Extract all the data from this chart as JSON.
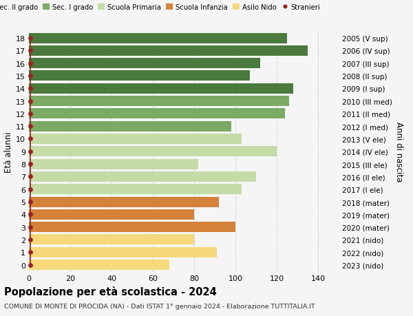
{
  "ages": [
    18,
    17,
    16,
    15,
    14,
    13,
    12,
    11,
    10,
    9,
    8,
    7,
    6,
    5,
    4,
    3,
    2,
    1,
    0
  ],
  "right_labels": [
    "2005 (V sup)",
    "2006 (IV sup)",
    "2007 (III sup)",
    "2008 (II sup)",
    "2009 (I sup)",
    "2010 (III med)",
    "2011 (II med)",
    "2012 (I med)",
    "2013 (V ele)",
    "2014 (IV ele)",
    "2015 (III ele)",
    "2016 (II ele)",
    "2017 (I ele)",
    "2018 (mater)",
    "2019 (mater)",
    "2020 (mater)",
    "2021 (nido)",
    "2022 (nido)",
    "2023 (nido)"
  ],
  "bar_values": [
    125,
    135,
    112,
    107,
    128,
    126,
    124,
    98,
    103,
    120,
    82,
    110,
    103,
    92,
    80,
    100,
    80,
    91,
    68
  ],
  "bar_colors": [
    "#4a7a3d",
    "#4a7a3d",
    "#4a7a3d",
    "#4a7a3d",
    "#4a7a3d",
    "#7aaa64",
    "#7aaa64",
    "#7aaa64",
    "#c5dba8",
    "#c5dba8",
    "#c5dba8",
    "#c5dba8",
    "#c5dba8",
    "#d4823a",
    "#d4823a",
    "#d4823a",
    "#f5d87a",
    "#f5d87a",
    "#f5d87a"
  ],
  "stranieri_color": "#9b2222",
  "legend_labels": [
    "Sec. II grado",
    "Sec. I grado",
    "Scuola Primaria",
    "Scuola Infanzia",
    "Asilo Nido",
    "Stranieri"
  ],
  "legend_colors": [
    "#4a7a3d",
    "#7aaa64",
    "#c5dba8",
    "#d4823a",
    "#f5d87a",
    "#9b2222"
  ],
  "ylabel_left": "Età alunni",
  "ylabel_right": "Anni di nascita",
  "title": "Popolazione per età scolastica - 2024",
  "subtitle": "COMUNE DI MONTE DI PROCIDA (NA) - Dati ISTAT 1° gennaio 2024 - Elaborazione TUTTITALIA.IT",
  "xlim": [
    0,
    150
  ],
  "xticks": [
    0,
    20,
    40,
    60,
    80,
    100,
    120,
    140
  ],
  "bg_color": "#f5f5f5",
  "figsize": [
    6.0,
    4.6
  ],
  "dpi": 100
}
